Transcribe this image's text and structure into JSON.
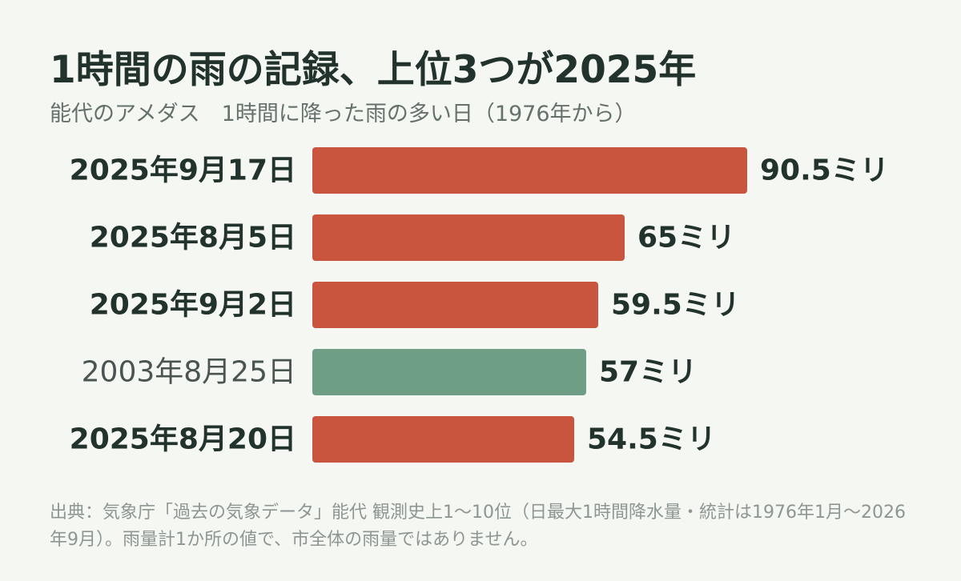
{
  "title": "1時間の雨の記録、上位3つが2025年",
  "subtitle": "能代のアメダス　1時間に降った雨の多い日（1976年から）",
  "source": "出典：気象庁「過去の気象データ」能代 観測史上1〜10位（日最大1時間降水量・統計は1976年1月〜2026年9月）。雨量計1か所の値で、市全体の雨量ではありません。",
  "colors": {
    "background": "#f5f7f2",
    "highlight": "#c9553f",
    "other": "#6e9f86",
    "text_dark": "#22322c",
    "text_muted": "#66716c"
  },
  "chart_data": {
    "type": "bar",
    "orientation": "horizontal",
    "categories": [
      "2025年9月17日",
      "2025年8月5日",
      "2025年9月2日",
      "2003年8月25日",
      "2025年8月20日"
    ],
    "values": [
      90.5,
      65,
      59.5,
      57,
      54.5
    ],
    "data_labels": [
      "90.5ミリ",
      "65ミリ",
      "59.5ミリ",
      "57ミリ",
      "54.5ミリ"
    ],
    "highlight": [
      true,
      true,
      true,
      false,
      true
    ],
    "unit": "ミリ"
  }
}
